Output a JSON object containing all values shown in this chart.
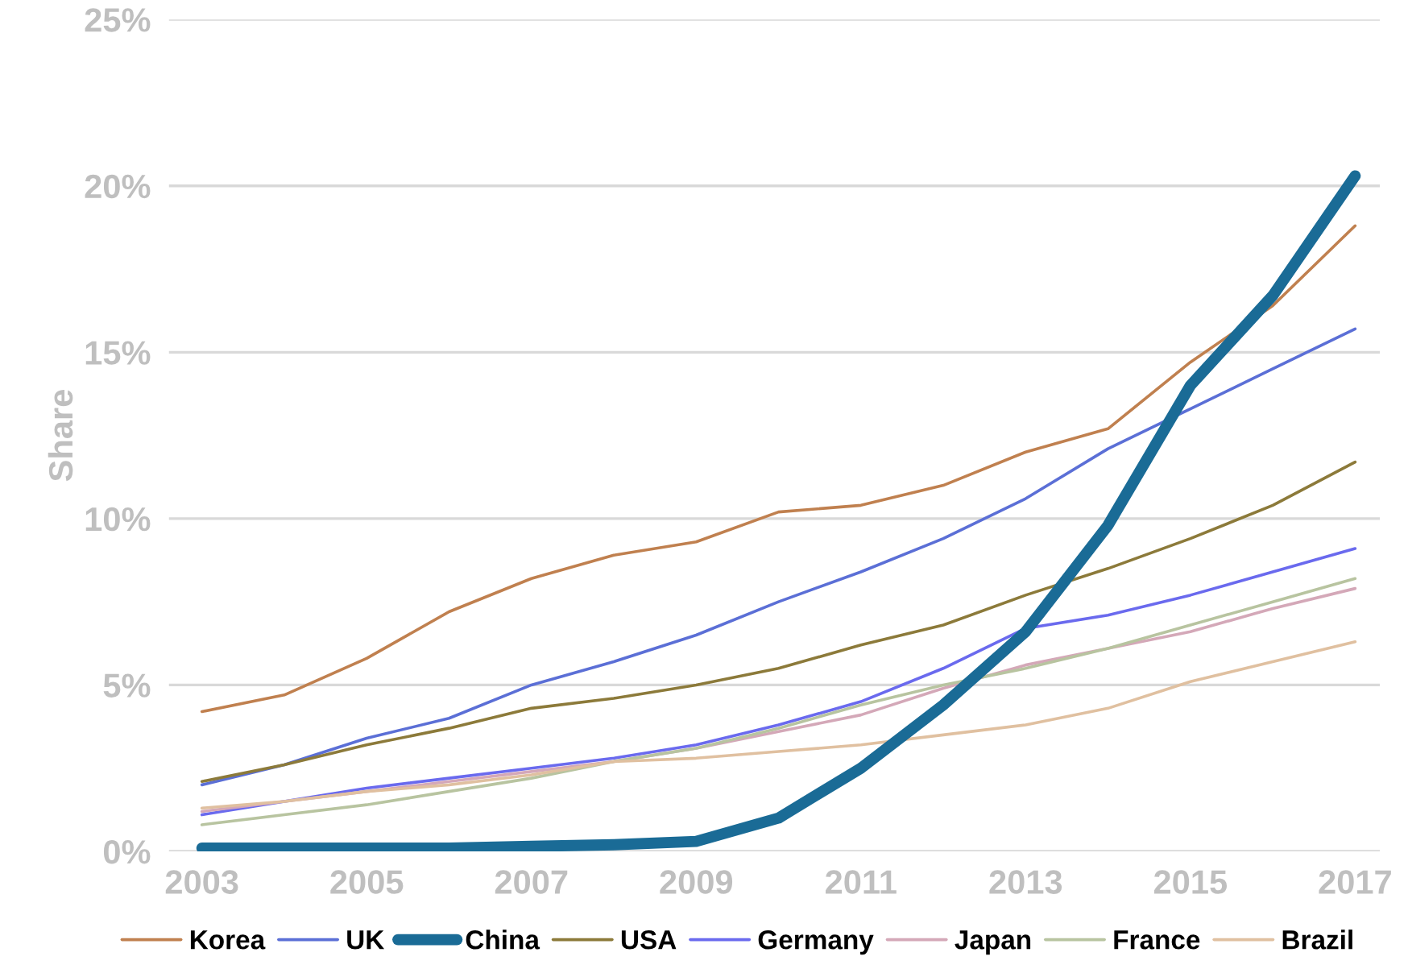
{
  "chart_data": {
    "type": "line",
    "ylabel": "Share",
    "x": [
      2003,
      2004,
      2005,
      2006,
      2007,
      2008,
      2009,
      2010,
      2011,
      2012,
      2013,
      2014,
      2015,
      2016,
      2017
    ],
    "xlim": [
      2002.6,
      2017.3
    ],
    "xticks": [
      2003,
      2005,
      2007,
      2009,
      2011,
      2013,
      2015,
      2017
    ],
    "ylim": [
      0,
      25
    ],
    "yticks": [
      {
        "value": 0,
        "label": "0%"
      },
      {
        "value": 5,
        "label": "5%"
      },
      {
        "value": 10,
        "label": "10%"
      },
      {
        "value": 15,
        "label": "15%"
      },
      {
        "value": 20,
        "label": "20%"
      },
      {
        "value": 25,
        "label": "25%"
      }
    ],
    "grid": "y",
    "legend": "bottom",
    "marker": "none",
    "line_style": "solid",
    "series": [
      {
        "name": "Korea",
        "color": "#c0804f",
        "values": [
          4.2,
          4.7,
          5.8,
          7.2,
          8.2,
          8.9,
          9.3,
          10.2,
          10.4,
          11.0,
          12.0,
          12.7,
          14.7,
          16.4,
          18.8
        ]
      },
      {
        "name": "UK",
        "color": "#5b6fd6",
        "values": [
          2.0,
          2.6,
          3.4,
          4.0,
          5.0,
          5.7,
          6.5,
          7.5,
          8.4,
          9.4,
          10.6,
          12.1,
          13.3,
          14.5,
          15.7
        ]
      },
      {
        "name": "China",
        "color": "#1a6b96",
        "values": [
          0.1,
          0.1,
          0.1,
          0.1,
          0.15,
          0.2,
          0.3,
          1.0,
          2.5,
          4.4,
          6.6,
          9.8,
          14.0,
          16.7,
          20.3
        ]
      },
      {
        "name": "USA",
        "color": "#8c7a3a",
        "values": [
          2.1,
          2.6,
          3.2,
          3.7,
          4.3,
          4.6,
          5.0,
          5.5,
          6.2,
          6.8,
          7.7,
          8.5,
          9.4,
          10.4,
          11.7
        ]
      },
      {
        "name": "Germany",
        "color": "#6a6aee",
        "values": [
          1.1,
          1.5,
          1.9,
          2.2,
          2.5,
          2.8,
          3.2,
          3.8,
          4.5,
          5.5,
          6.7,
          7.1,
          7.7,
          8.4,
          9.1
        ]
      },
      {
        "name": "Japan",
        "color": "#d4a8b8",
        "values": [
          1.2,
          1.5,
          1.8,
          2.1,
          2.4,
          2.7,
          3.1,
          3.6,
          4.1,
          4.9,
          5.6,
          6.1,
          6.6,
          7.3,
          7.9
        ]
      },
      {
        "name": "France",
        "color": "#b8c4a0",
        "values": [
          0.8,
          1.1,
          1.4,
          1.8,
          2.2,
          2.7,
          3.1,
          3.7,
          4.4,
          5.0,
          5.5,
          6.1,
          6.8,
          7.5,
          8.2
        ]
      },
      {
        "name": "Brazil",
        "color": "#e0c0a0",
        "values": [
          1.3,
          1.5,
          1.8,
          2.0,
          2.3,
          2.7,
          2.8,
          3.0,
          3.2,
          3.5,
          3.8,
          4.3,
          5.1,
          5.7,
          6.3
        ]
      }
    ]
  }
}
